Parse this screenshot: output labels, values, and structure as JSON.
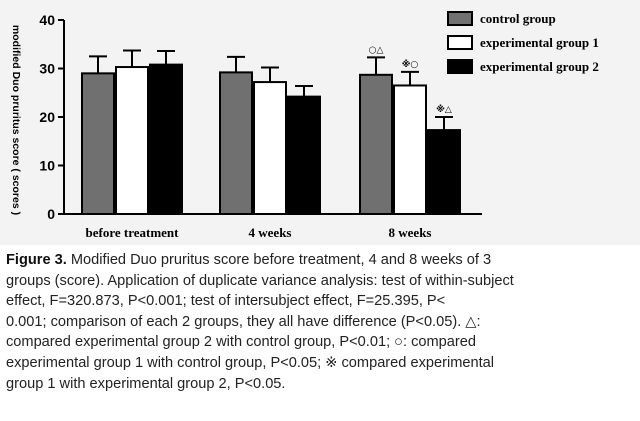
{
  "chart_data": {
    "type": "bar",
    "categories": [
      "before treatment",
      "4 weeks",
      "8 weeks"
    ],
    "ylabel": "modified Duo pruritus score ( scores )",
    "ylim": [
      0,
      40
    ],
    "yticks": [
      "0",
      "10",
      "20",
      "30",
      "40"
    ],
    "legend_position": "top-right",
    "series": [
      {
        "name": "control group",
        "color": "#707070",
        "values": [
          29,
          29.2,
          28.7
        ],
        "errors": [
          3.5,
          3.2,
          3.6
        ]
      },
      {
        "name": "experimental group 1",
        "color": "#ffffff",
        "values": [
          30.3,
          27.2,
          26.5
        ],
        "errors": [
          3.4,
          3.0,
          2.8
        ]
      },
      {
        "name": "experimental group 2",
        "color": "#000000",
        "values": [
          30.8,
          24.2,
          17.3
        ],
        "errors": [
          2.8,
          2.2,
          2.7
        ]
      }
    ],
    "annotations": [
      {
        "category": "8 weeks",
        "series": "control group",
        "text": "○△"
      },
      {
        "category": "8 weeks",
        "series": "experimental group 1",
        "text": "※○"
      },
      {
        "category": "8 weeks",
        "series": "experimental group 2",
        "text": "※△"
      }
    ]
  },
  "caption": {
    "figure_label": "Figure 3.",
    "line1": "Modified Duo pruritus score before treatment, 4 and 8 weeks of 3",
    "line2": "groups (score). Application of duplicate variance analysis: test of within-subject",
    "line3": "effect, F=320.873, P<0.001; test of intersubject effect, F=25.395, P<",
    "line4": "0.001; comparison of each 2 groups, they all have difference (P<0.05). △:",
    "line5": "compared experimental group 2 with control group, P<0.01; ○: compared",
    "line6": "experimental group 1 with control group, P<0.05; ※ compared experimental",
    "line7": "group 1 with experimental group 2, P<0.05."
  }
}
